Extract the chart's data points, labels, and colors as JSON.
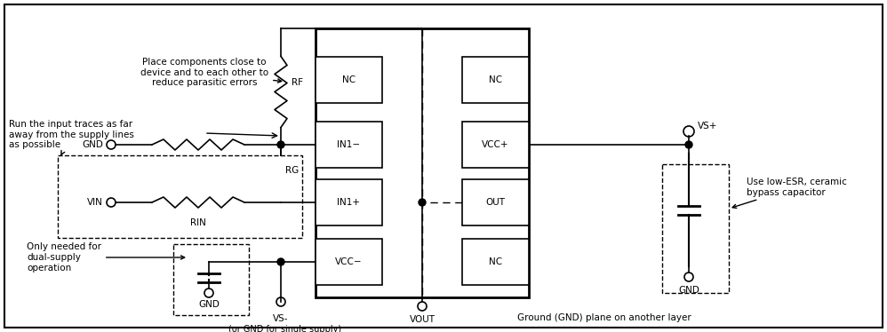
{
  "bg_color": "#ffffff",
  "fig_width": 9.98,
  "fig_height": 3.74,
  "dpi": 100,
  "texts": {
    "place_components": "Place components close to\ndevice and to each other to\nreduce parasitic errors",
    "run_input": "Run the input traces as far\naway from the supply lines\nas possible",
    "only_needed": "Only needed for\ndual-supply\noperation",
    "use_low_esr": "Use low-ESR, ceramic\nbypass capacitor",
    "ground_plane": "Ground (GND) plane on another layer",
    "vs_minus_sub": "(or GND for single supply)",
    "vout": "VOUT",
    "vs_minus": "VS-",
    "vs_plus": "VS+",
    "rf": "RF",
    "rg": "RG",
    "rin": "RIN",
    "gnd": "GND",
    "vin": "VIN"
  }
}
